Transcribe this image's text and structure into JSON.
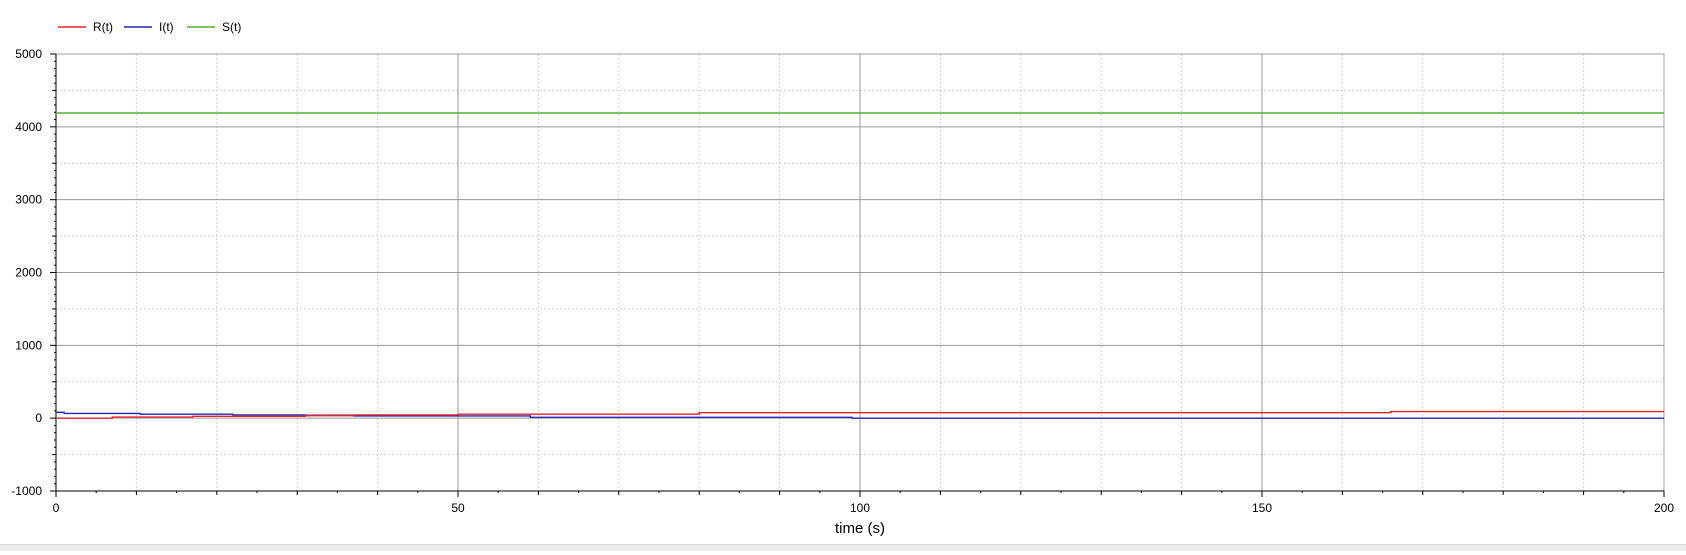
{
  "chart_data": {
    "type": "line",
    "title": "",
    "xlabel": "time (s)",
    "ylabel": "",
    "xlim": [
      0,
      200
    ],
    "ylim": [
      -1000,
      5000
    ],
    "x_ticks": [
      0,
      50,
      100,
      150,
      200
    ],
    "y_ticks": [
      -1000,
      0,
      1000,
      2000,
      3000,
      4000,
      5000
    ],
    "x_tick_labels": [
      "0",
      "50",
      "100",
      "150",
      "200"
    ],
    "y_tick_labels": [
      "-1000",
      "0",
      "1000",
      "2000",
      "3000",
      "4000",
      "5000"
    ],
    "grid": true,
    "legend_position": "top-left",
    "series": [
      {
        "name": "R(t)",
        "color": "#e8202a",
        "step": true,
        "points": [
          [
            0,
            0
          ],
          [
            7,
            0
          ],
          [
            7,
            15
          ],
          [
            17,
            15
          ],
          [
            17,
            25
          ],
          [
            31,
            25
          ],
          [
            31,
            35
          ],
          [
            37,
            35
          ],
          [
            37,
            45
          ],
          [
            50,
            45
          ],
          [
            50,
            55
          ],
          [
            80,
            55
          ],
          [
            80,
            75
          ],
          [
            166,
            75
          ],
          [
            166,
            90
          ],
          [
            200,
            90
          ]
        ]
      },
      {
        "name": "I(t)",
        "color": "#2626b2",
        "step": true,
        "points": [
          [
            0,
            80
          ],
          [
            1,
            80
          ],
          [
            1,
            65
          ],
          [
            10.5,
            65
          ],
          [
            10.5,
            55
          ],
          [
            22,
            55
          ],
          [
            22,
            45
          ],
          [
            31,
            45
          ],
          [
            31,
            40
          ],
          [
            37,
            40
          ],
          [
            37,
            30
          ],
          [
            59,
            30
          ],
          [
            59,
            12
          ],
          [
            99,
            12
          ],
          [
            99,
            0
          ],
          [
            200,
            0
          ]
        ]
      },
      {
        "name": "S(t)",
        "color": "#55b031",
        "step": false,
        "points": [
          [
            0,
            4190
          ],
          [
            200,
            4190
          ]
        ]
      }
    ]
  }
}
